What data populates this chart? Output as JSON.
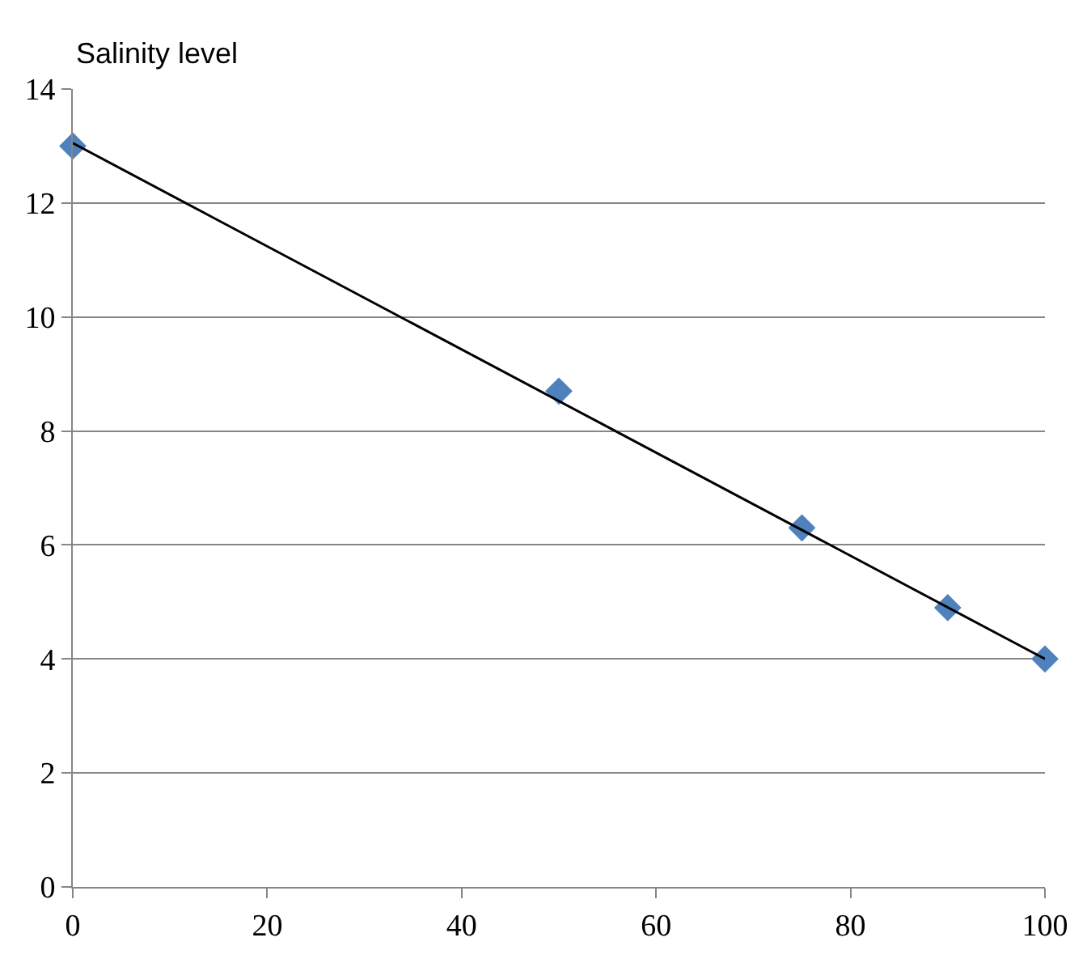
{
  "chart_data": {
    "type": "scatter",
    "ylabel": "Salinity level",
    "xlim": [
      0,
      100
    ],
    "xticks": [
      0,
      20,
      40,
      60,
      80,
      100
    ],
    "ylim": [
      0,
      14
    ],
    "yticks": [
      0,
      2,
      4,
      6,
      8,
      10,
      12,
      14
    ],
    "grid": "y",
    "marker": "diamond",
    "series": [
      {
        "color": "#4f81bd",
        "x": [
          0,
          50,
          75,
          90,
          100
        ],
        "values": [
          13,
          8.7,
          6.3,
          4.9,
          4
        ]
      },
      {
        "type": "line",
        "color": "#000000",
        "x": [
          0,
          100
        ],
        "values": [
          13.05,
          4.0
        ],
        "marker": "none",
        "line_style": "solid"
      }
    ]
  }
}
